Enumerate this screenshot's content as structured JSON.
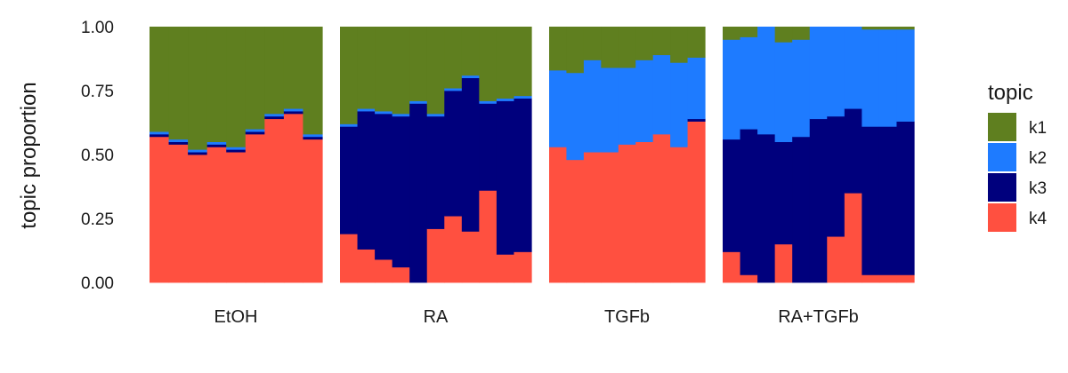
{
  "chart_data": {
    "type": "bar",
    "stacked": true,
    "ylabel": "topic proportion",
    "ylim": [
      0,
      1
    ],
    "yticks": [
      "0.00",
      "0.25",
      "0.50",
      "0.75",
      "1.00"
    ],
    "grid": false,
    "legend": {
      "title": "topic",
      "position": "right",
      "items": [
        {
          "name": "k1",
          "color": "#5F7F1F"
        },
        {
          "name": "k2",
          "color": "#1E7BFF"
        },
        {
          "name": "k3",
          "color": "#00007D"
        },
        {
          "name": "k4",
          "color": "#FF5040"
        }
      ]
    },
    "stack_order": [
      "k4",
      "k3",
      "k2",
      "k1"
    ],
    "facets": [
      {
        "label": "EtOH",
        "bars": [
          {
            "k4": 0.57,
            "k3": 0.01,
            "k2": 0.01,
            "k1": 0.41
          },
          {
            "k4": 0.54,
            "k3": 0.01,
            "k2": 0.01,
            "k1": 0.44
          },
          {
            "k4": 0.5,
            "k3": 0.01,
            "k2": 0.01,
            "k1": 0.48
          },
          {
            "k4": 0.53,
            "k3": 0.01,
            "k2": 0.01,
            "k1": 0.45
          },
          {
            "k4": 0.51,
            "k3": 0.01,
            "k2": 0.01,
            "k1": 0.47
          },
          {
            "k4": 0.58,
            "k3": 0.01,
            "k2": 0.01,
            "k1": 0.4
          },
          {
            "k4": 0.64,
            "k3": 0.01,
            "k2": 0.01,
            "k1": 0.34
          },
          {
            "k4": 0.66,
            "k3": 0.01,
            "k2": 0.01,
            "k1": 0.32
          },
          {
            "k4": 0.56,
            "k3": 0.01,
            "k2": 0.01,
            "k1": 0.42
          }
        ]
      },
      {
        "label": "RA",
        "bars": [
          {
            "k4": 0.19,
            "k3": 0.42,
            "k2": 0.01,
            "k1": 0.38
          },
          {
            "k4": 0.13,
            "k3": 0.54,
            "k2": 0.01,
            "k1": 0.32
          },
          {
            "k4": 0.09,
            "k3": 0.57,
            "k2": 0.01,
            "k1": 0.33
          },
          {
            "k4": 0.06,
            "k3": 0.59,
            "k2": 0.01,
            "k1": 0.34
          },
          {
            "k4": 0.0,
            "k3": 0.7,
            "k2": 0.01,
            "k1": 0.29
          },
          {
            "k4": 0.21,
            "k3": 0.44,
            "k2": 0.01,
            "k1": 0.34
          },
          {
            "k4": 0.26,
            "k3": 0.49,
            "k2": 0.01,
            "k1": 0.24
          },
          {
            "k4": 0.2,
            "k3": 0.6,
            "k2": 0.01,
            "k1": 0.19
          },
          {
            "k4": 0.36,
            "k3": 0.34,
            "k2": 0.01,
            "k1": 0.29
          },
          {
            "k4": 0.11,
            "k3": 0.6,
            "k2": 0.01,
            "k1": 0.28
          },
          {
            "k4": 0.12,
            "k3": 0.6,
            "k2": 0.01,
            "k1": 0.27
          }
        ]
      },
      {
        "label": "TGFb",
        "bars": [
          {
            "k4": 0.53,
            "k3": 0.0,
            "k2": 0.3,
            "k1": 0.17
          },
          {
            "k4": 0.48,
            "k3": 0.0,
            "k2": 0.34,
            "k1": 0.18
          },
          {
            "k4": 0.51,
            "k3": 0.0,
            "k2": 0.36,
            "k1": 0.13
          },
          {
            "k4": 0.51,
            "k3": 0.0,
            "k2": 0.33,
            "k1": 0.16
          },
          {
            "k4": 0.54,
            "k3": 0.0,
            "k2": 0.3,
            "k1": 0.16
          },
          {
            "k4": 0.55,
            "k3": 0.0,
            "k2": 0.32,
            "k1": 0.13
          },
          {
            "k4": 0.58,
            "k3": 0.0,
            "k2": 0.31,
            "k1": 0.11
          },
          {
            "k4": 0.53,
            "k3": 0.0,
            "k2": 0.33,
            "k1": 0.14
          },
          {
            "k4": 0.63,
            "k3": 0.01,
            "k2": 0.24,
            "k1": 0.12
          }
        ]
      },
      {
        "label": "RA+TGFb",
        "bars": [
          {
            "k4": 0.12,
            "k3": 0.44,
            "k2": 0.39,
            "k1": 0.05
          },
          {
            "k4": 0.03,
            "k3": 0.57,
            "k2": 0.36,
            "k1": 0.04
          },
          {
            "k4": 0.0,
            "k3": 0.58,
            "k2": 0.42,
            "k1": 0.0
          },
          {
            "k4": 0.15,
            "k3": 0.4,
            "k2": 0.39,
            "k1": 0.06
          },
          {
            "k4": 0.0,
            "k3": 0.57,
            "k2": 0.38,
            "k1": 0.05
          },
          {
            "k4": 0.0,
            "k3": 0.64,
            "k2": 0.36,
            "k1": 0.0
          },
          {
            "k4": 0.18,
            "k3": 0.47,
            "k2": 0.35,
            "k1": 0.0
          },
          {
            "k4": 0.35,
            "k3": 0.33,
            "k2": 0.32,
            "k1": 0.0
          },
          {
            "k4": 0.03,
            "k3": 0.58,
            "k2": 0.38,
            "k1": 0.01
          },
          {
            "k4": 0.03,
            "k3": 0.58,
            "k2": 0.38,
            "k1": 0.01
          },
          {
            "k4": 0.03,
            "k3": 0.6,
            "k2": 0.36,
            "k1": 0.01
          }
        ]
      }
    ]
  }
}
